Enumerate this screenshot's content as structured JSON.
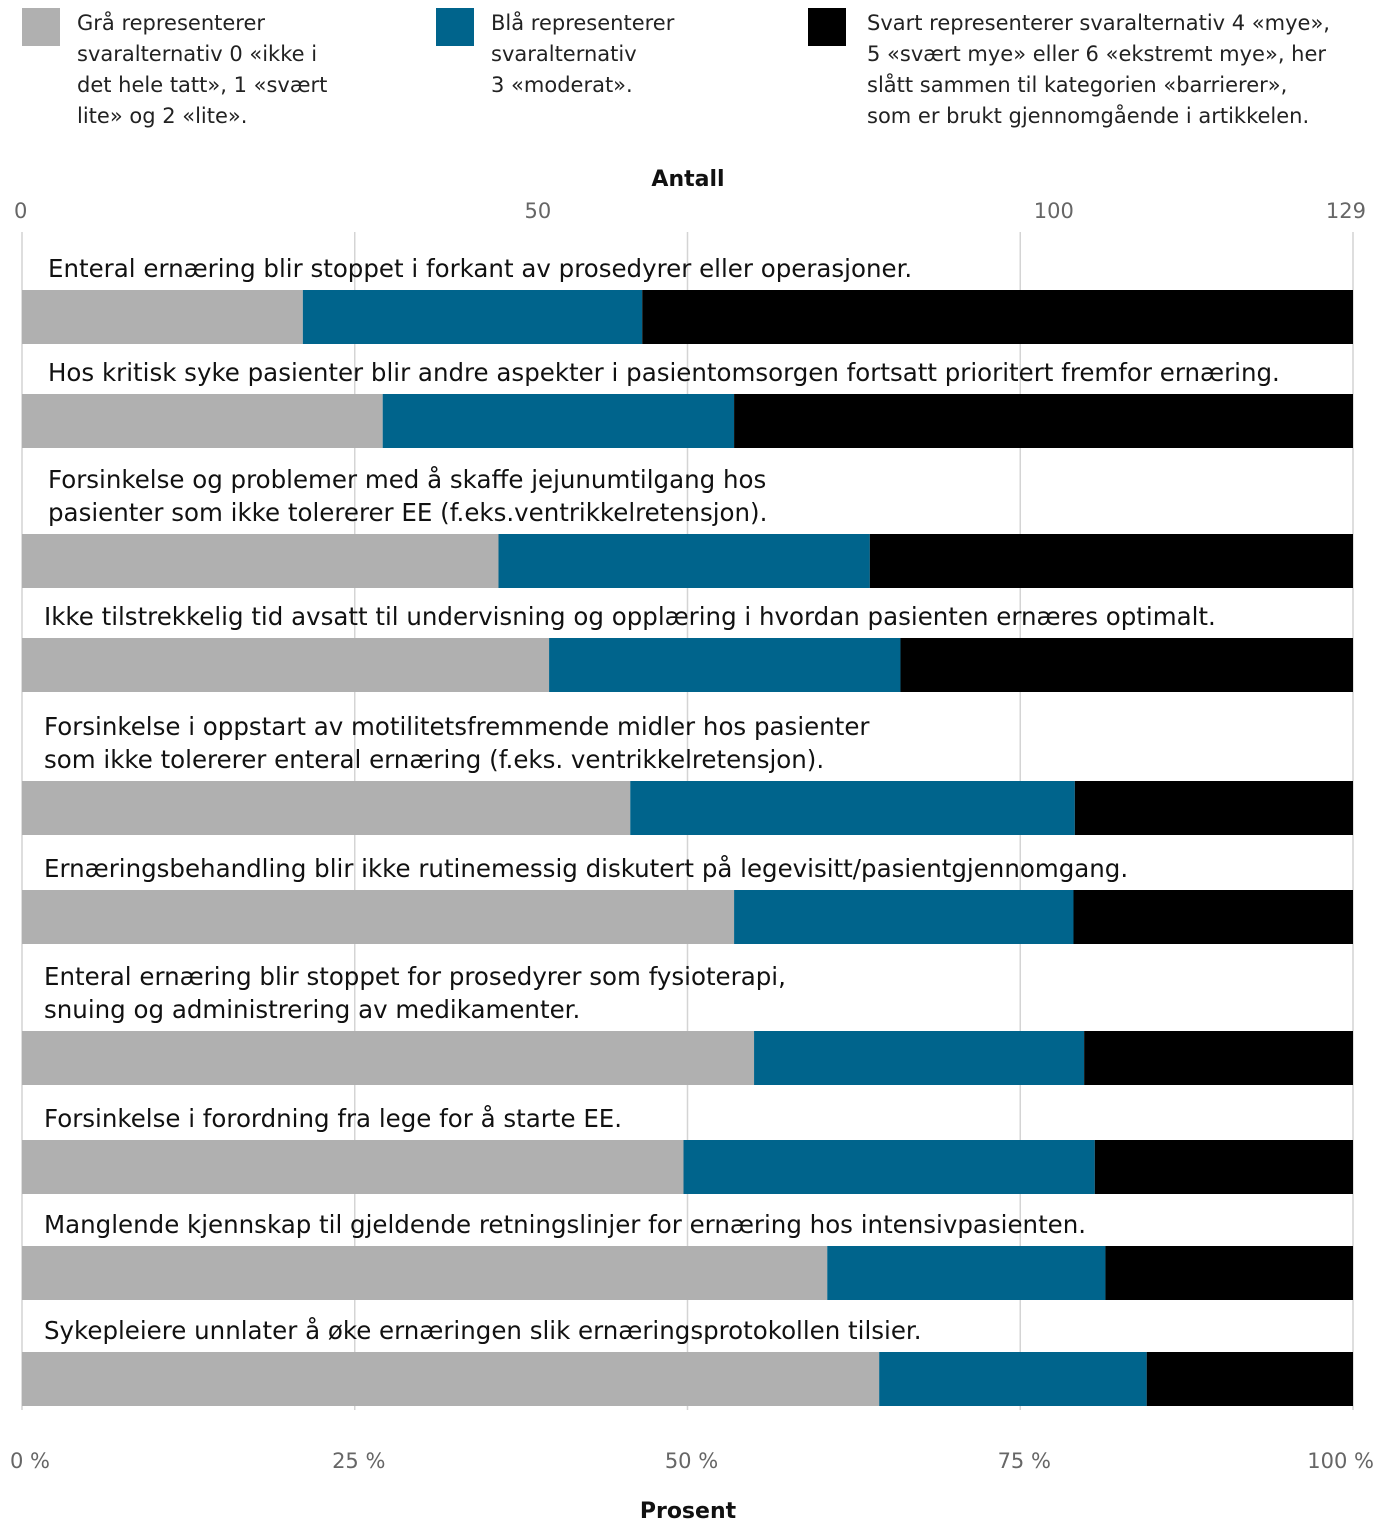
{
  "legend": [
    {
      "color": "#b0b0b0",
      "text": [
        "Grå representerer",
        "svaralternativ 0 «ikke i",
        "det hele tatt», 1 «svært",
        "lite» og 2 «lite»."
      ]
    },
    {
      "color": "#00648c",
      "text": [
        "Blå representerer",
        "svaralternativ",
        "3 «moderat»."
      ]
    },
    {
      "color": "#000000",
      "text": [
        "Svart representerer svaralternativ 4 «mye»,",
        "5 «svært mye» eller 6 «ekstremt mye», her",
        "slått sammen til kategorien «barrierer»,",
        "som er brukt gjennomgående i artikkelen."
      ]
    }
  ],
  "chart_data": {
    "type": "bar",
    "orientation": "horizontal",
    "stacked": true,
    "x_top": {
      "label": "Antall",
      "ticks": [
        0,
        50,
        100,
        129
      ],
      "range": [
        0,
        129
      ]
    },
    "x_bottom": {
      "label": "Prosent",
      "ticks": [
        "0 %",
        "25 %",
        "50 %",
        "75 %",
        "100 %"
      ],
      "range": [
        0,
        100
      ]
    },
    "grid": true,
    "legend_position": "top",
    "series_colors": [
      "#b0b0b0",
      "#00648c",
      "#000000"
    ],
    "categories": [
      [
        "Enteral ernæring blir stoppet i forkant av prosedyrer eller operasjoner."
      ],
      [
        "Hos kritisk syke pasienter blir andre aspekter i pasientomsorgen fortsatt prioritert fremfor ernæring."
      ],
      [
        "Forsinkelse og problemer med å skaffe jejunumtilgang hos",
        "pasienter som ikke tolererer EE (f.eks.ventrikkelretensjon)."
      ],
      [
        "Ikke tilstrekkelig tid avsatt til undervisning og opplæring i hvordan pasienten ernæres optimalt."
      ],
      [
        "Forsinkelse i oppstart av motilitetsfremmende midler hos pasienter",
        "som ikke tolererer enteral ernæring (f.eks. ventrikkelretensjon)."
      ],
      [
        "Ernæringsbehandling blir ikke rutinemessig diskutert på legevisitt/pasientgjennomgang."
      ],
      [
        "Enteral ernæring blir stoppet for prosedyrer som fysioterapi,",
        "snuing og administrering av medikamenter."
      ],
      [
        "Forsinkelse i forordning fra lege for å starte EE."
      ],
      [
        "Manglende kjennskap til gjeldende retningslinjer for ernæring hos intensivpasienten."
      ],
      [
        "Sykepleiere unnlater å øke ernæringen slik ernæringsprotokollen tilsier."
      ]
    ],
    "series": [
      {
        "values": [
          21.1,
          27.1,
          35.8,
          39.6,
          45.7,
          53.5,
          55.0,
          49.7,
          60.5,
          64.4
        ]
      },
      {
        "values": [
          25.5,
          26.4,
          27.9,
          26.4,
          33.4,
          25.5,
          24.8,
          30.9,
          20.9,
          20.1
        ]
      },
      {
        "values": [
          53.4,
          46.5,
          36.3,
          34.0,
          20.9,
          21.0,
          20.2,
          19.4,
          18.6,
          15.5
        ]
      }
    ]
  }
}
